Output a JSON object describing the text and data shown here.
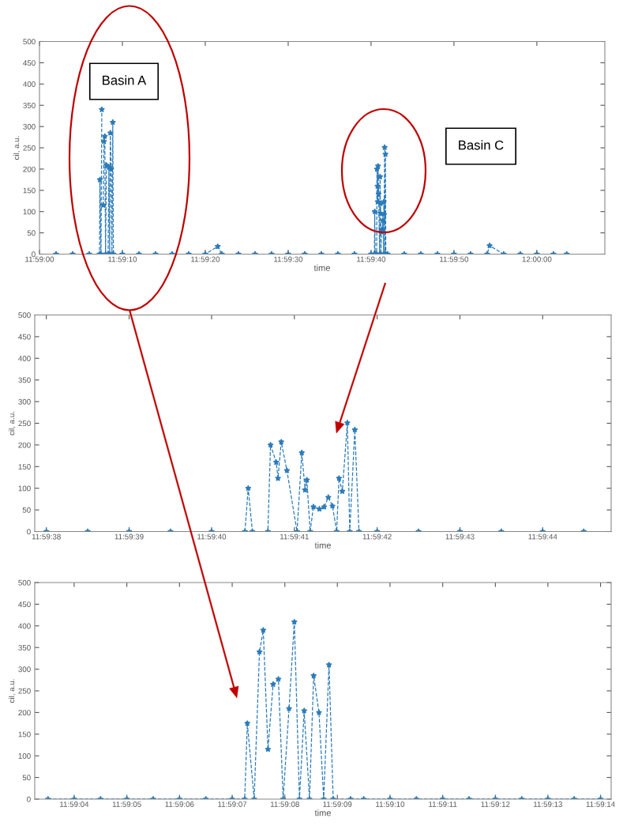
{
  "chart_data": [
    {
      "type": "line",
      "xlabel": "time",
      "ylabel": "cil, a.u.",
      "marker": "star",
      "line_style": "dashed",
      "annotations": [
        "Basin A",
        "Basin C"
      ],
      "xlim": [
        11.983333,
        12.002278
      ],
      "ylim": [
        0,
        500
      ],
      "yticks": [
        0,
        50,
        100,
        150,
        200,
        250,
        300,
        350,
        400,
        450,
        500
      ],
      "xticks": [
        {
          "value": 11.983333,
          "label": "11:59:00"
        },
        {
          "value": 11.986111,
          "label": "11:59:10"
        },
        {
          "value": 11.988889,
          "label": "11:59:20"
        },
        {
          "value": 11.991667,
          "label": "11:59:30"
        },
        {
          "value": 11.994444,
          "label": "11:59:40"
        },
        {
          "value": 11.997222,
          "label": "11:59:50"
        },
        {
          "value": 12.0,
          "label": "12:00:00"
        }
      ],
      "x": [
        11.983889,
        11.984444,
        11.985,
        11.985344,
        11.985358,
        11.985394,
        11.985422,
        11.985442,
        11.985467,
        11.985494,
        11.985522,
        11.985547,
        11.985578,
        11.985606,
        11.985633,
        11.985658,
        11.985686,
        11.985708,
        11.985736,
        11.985761,
        11.985789,
        11.985811,
        11.986111,
        11.986667,
        11.987222,
        11.987778,
        11.988333,
        11.988889,
        11.989306,
        11.989444,
        11.99,
        11.990556,
        11.991111,
        11.991667,
        11.992222,
        11.992778,
        11.993333,
        11.993889,
        11.994444,
        11.994556,
        11.994567,
        11.994581,
        11.994633,
        11.994642,
        11.994661,
        11.994667,
        11.994678,
        11.994697,
        11.994731,
        11.994747,
        11.994758,
        11.994764,
        11.994775,
        11.994786,
        11.994806,
        11.994822,
        11.994836,
        11.99485,
        11.994864,
        11.994872,
        11.994883,
        11.9949,
        11.994908,
        11.994925,
        11.994939,
        11.995,
        11.995556,
        11.996111,
        11.996667,
        11.997222,
        11.997778,
        11.998333,
        11.998417,
        11.998889,
        11.999444,
        12.0,
        12.000556,
        12.001
      ],
      "series": [
        {
          "color": "#2b7bb9",
          "values": [
            0,
            0,
            0,
            0,
            175,
            0,
            340,
            null,
            115,
            265,
            277,
            0,
            209,
            null,
            0,
            204,
            0,
            285,
            200,
            0,
            310,
            0,
            0,
            0,
            0,
            0,
            0,
            0,
            18,
            0,
            0,
            0,
            0,
            0,
            0,
            0,
            0,
            0,
            0,
            0,
            100,
            0,
            0,
            200,
            160,
            123,
            207,
            141,
            0,
            182,
            96,
            119,
            0,
            57,
            52,
            57,
            79,
            59,
            0,
            123,
            93,
            251,
            0,
            235,
            0,
            0,
            0,
            0,
            0,
            0,
            0,
            0,
            20,
            0,
            0,
            0,
            0,
            0
          ]
        }
      ]
    },
    {
      "type": "line",
      "xlabel": "time",
      "ylabel": "cil, a.u.",
      "marker": "star",
      "line_style": "dashed",
      "xlim": [
        11.99385,
        11.995786
      ],
      "ylim": [
        0,
        500
      ],
      "yticks": [
        0,
        50,
        100,
        150,
        200,
        250,
        300,
        350,
        400,
        450,
        500
      ],
      "xticks": [
        {
          "value": 11.993889,
          "label": "11:59:38"
        },
        {
          "value": 11.994167,
          "label": "11:59:39"
        },
        {
          "value": 11.994444,
          "label": "11:59:40"
        },
        {
          "value": 11.994722,
          "label": "11:59:41"
        },
        {
          "value": 11.995,
          "label": "11:59:42"
        },
        {
          "value": 11.995278,
          "label": "11:59:43"
        },
        {
          "value": 11.995556,
          "label": "11:59:44"
        }
      ],
      "x": [
        11.993889,
        11.994028,
        11.994167,
        11.994306,
        11.994444,
        11.994556,
        11.994567,
        11.994581,
        11.994633,
        11.994642,
        11.994661,
        11.994667,
        11.994678,
        11.994697,
        11.994731,
        11.994747,
        11.994758,
        11.994764,
        11.994775,
        11.994786,
        11.994806,
        11.994822,
        11.994836,
        11.99485,
        11.994864,
        11.994872,
        11.994883,
        11.9949,
        11.994908,
        11.994925,
        11.994939,
        11.995,
        11.995139,
        11.995278,
        11.995417,
        11.995556,
        11.995694
      ],
      "series": [
        {
          "color": "#2b7bb9",
          "values": [
            0,
            0,
            0,
            0,
            0,
            0,
            100,
            0,
            0,
            200,
            160,
            123,
            207,
            141,
            0,
            182,
            96,
            119,
            0,
            57,
            52,
            57,
            79,
            59,
            0,
            123,
            93,
            251,
            0,
            235,
            0,
            0,
            0,
            0,
            0,
            0,
            0
          ]
        }
      ]
    },
    {
      "type": "line",
      "xlabel": "time",
      "ylabel": "cil, a.u.",
      "marker": "star",
      "line_style": "dashed",
      "xlim": [
        11.984236,
        11.987278
      ],
      "ylim": [
        0,
        500
      ],
      "yticks": [
        0,
        50,
        100,
        150,
        200,
        250,
        300,
        350,
        400,
        450,
        500
      ],
      "xticks": [
        {
          "value": 11.984444,
          "label": "11:59:04"
        },
        {
          "value": 11.984722,
          "label": "11:59:05"
        },
        {
          "value": 11.985,
          "label": "11:59:06"
        },
        {
          "value": 11.985278,
          "label": "11:59:07"
        },
        {
          "value": 11.985556,
          "label": "11:59:08"
        },
        {
          "value": 11.985833,
          "label": "11:59:09"
        },
        {
          "value": 11.986111,
          "label": "11:59:10"
        },
        {
          "value": 11.986389,
          "label": "11:59:11"
        },
        {
          "value": 11.986667,
          "label": "11:59:12"
        },
        {
          "value": 11.986944,
          "label": "11:59:13"
        },
        {
          "value": 11.987222,
          "label": "11:59:14"
        }
      ],
      "x": [
        11.984306,
        11.984444,
        11.984583,
        11.984722,
        11.984861,
        11.985,
        11.985139,
        11.985278,
        11.985344,
        11.985358,
        11.985394,
        11.985422,
        11.985442,
        11.985467,
        11.985494,
        11.985522,
        11.985547,
        11.985578,
        11.985606,
        11.985633,
        11.985658,
        11.985686,
        11.985708,
        11.985736,
        11.985761,
        11.985789,
        11.985811,
        11.985903,
        11.985972,
        11.986111,
        11.98625,
        11.986389,
        11.986528,
        11.986667,
        11.986806,
        11.986944,
        11.987083,
        11.987222
      ],
      "series": [
        {
          "color": "#2b7bb9",
          "values": [
            0,
            0,
            0,
            0,
            0,
            0,
            0,
            0,
            0,
            175,
            0,
            340,
            390,
            115,
            265,
            277,
            0,
            209,
            409,
            0,
            204,
            0,
            285,
            200,
            0,
            310,
            0,
            0,
            0,
            0,
            0,
            0,
            0,
            0,
            0,
            0,
            0,
            0
          ]
        }
      ]
    }
  ]
}
